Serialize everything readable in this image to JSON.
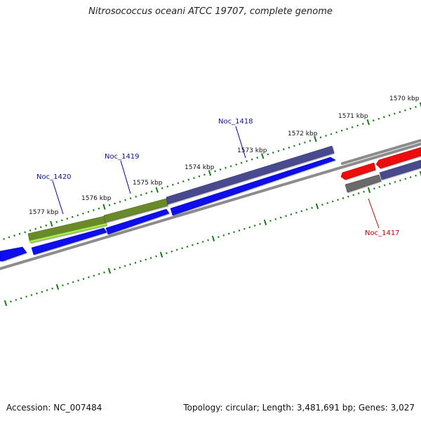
{
  "title": "Nitrosococcus oceani ATCC 19707, complete genome",
  "footer": {
    "accession": "Accession: NC_007484",
    "topology": "Topology: circular; Length: 3,481,691 bp; Genes: 3,027"
  },
  "scale_labels": [
    "1570 kbp",
    "1571 kbp",
    "1572 kbp",
    "1573 kbp",
    "1574 kbp",
    "1575 kbp",
    "1576 kbp",
    "1577 kbp"
  ],
  "gene_labels": [
    "Noc_1417",
    "Noc_1418",
    "Noc_1419",
    "Noc_1420"
  ],
  "colors": {
    "tick": "#1a7a1a",
    "backbone": "#888888",
    "label_blue": "#1010a0",
    "label_red": "#cc0000",
    "cds_blue": "#0a0aee",
    "cds_purple": "#4a4a90",
    "cds_olive": "#6a8a2a",
    "cds_lime": "#a8f048",
    "cds_red": "#ee0a0a",
    "cds_gray": "#6a6a6a"
  }
}
